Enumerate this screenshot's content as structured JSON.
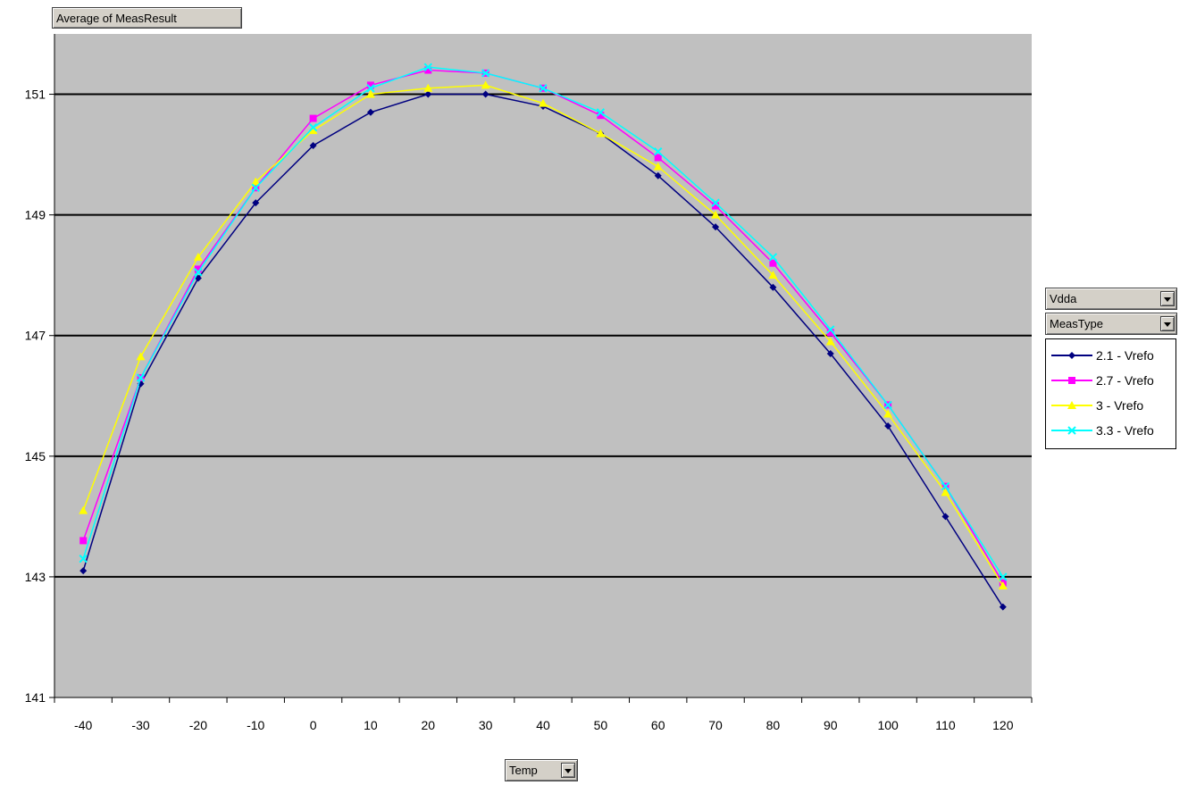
{
  "pivot_fields": {
    "data_field": "Average of MeasResult",
    "filter_1": "Vdda",
    "filter_2": "MeasType",
    "axis_field": "Temp"
  },
  "chart_data": {
    "type": "line",
    "title": "",
    "xlabel": "",
    "ylabel": "",
    "x": [
      -40,
      -30,
      -20,
      -10,
      0,
      10,
      20,
      30,
      40,
      50,
      60,
      70,
      80,
      90,
      100,
      110,
      120
    ],
    "x_tick_labels": [
      "-40",
      "-30",
      "-20",
      "-10",
      "0",
      "10",
      "20",
      "30",
      "40",
      "50",
      "60",
      "70",
      "80",
      "90",
      "100",
      "110",
      "120"
    ],
    "ylim": [
      141,
      152
    ],
    "y_ticks": [
      141,
      143,
      145,
      147,
      149,
      151
    ],
    "y_tick_labels": [
      "141",
      "143",
      "145",
      "147",
      "149",
      "151"
    ],
    "grid": "horizontal major lines at 143-151",
    "legend_position": "right",
    "plot_background": "#c0c0c0",
    "series": [
      {
        "name": "2.1 - Vrefo",
        "color": "#000080",
        "marker": "diamond",
        "values": [
          143.1,
          146.2,
          147.95,
          149.2,
          150.15,
          150.7,
          151.0,
          151.0,
          150.8,
          150.35,
          149.65,
          148.8,
          147.8,
          146.7,
          145.5,
          144.0,
          142.5
        ]
      },
      {
        "name": "2.7 - Vrefo",
        "color": "#ff00ff",
        "marker": "square",
        "values": [
          143.6,
          146.3,
          148.1,
          149.45,
          150.6,
          151.15,
          151.4,
          151.35,
          151.1,
          150.65,
          149.95,
          149.15,
          148.2,
          147.05,
          145.85,
          144.5,
          142.9
        ]
      },
      {
        "name": "3 - Vrefo",
        "color": "#ffff00",
        "marker": "triangle",
        "values": [
          144.1,
          146.65,
          148.3,
          149.55,
          150.4,
          151.0,
          151.1,
          151.15,
          150.85,
          150.35,
          149.8,
          149.0,
          148.0,
          146.9,
          145.7,
          144.4,
          142.85
        ]
      },
      {
        "name": "3.3 - Vrefo",
        "color": "#00ffff",
        "marker": "x",
        "values": [
          143.3,
          146.3,
          148.05,
          149.45,
          150.45,
          151.1,
          151.45,
          151.35,
          151.1,
          150.7,
          150.05,
          149.2,
          148.3,
          147.1,
          145.85,
          144.5,
          143.0
        ]
      }
    ]
  }
}
